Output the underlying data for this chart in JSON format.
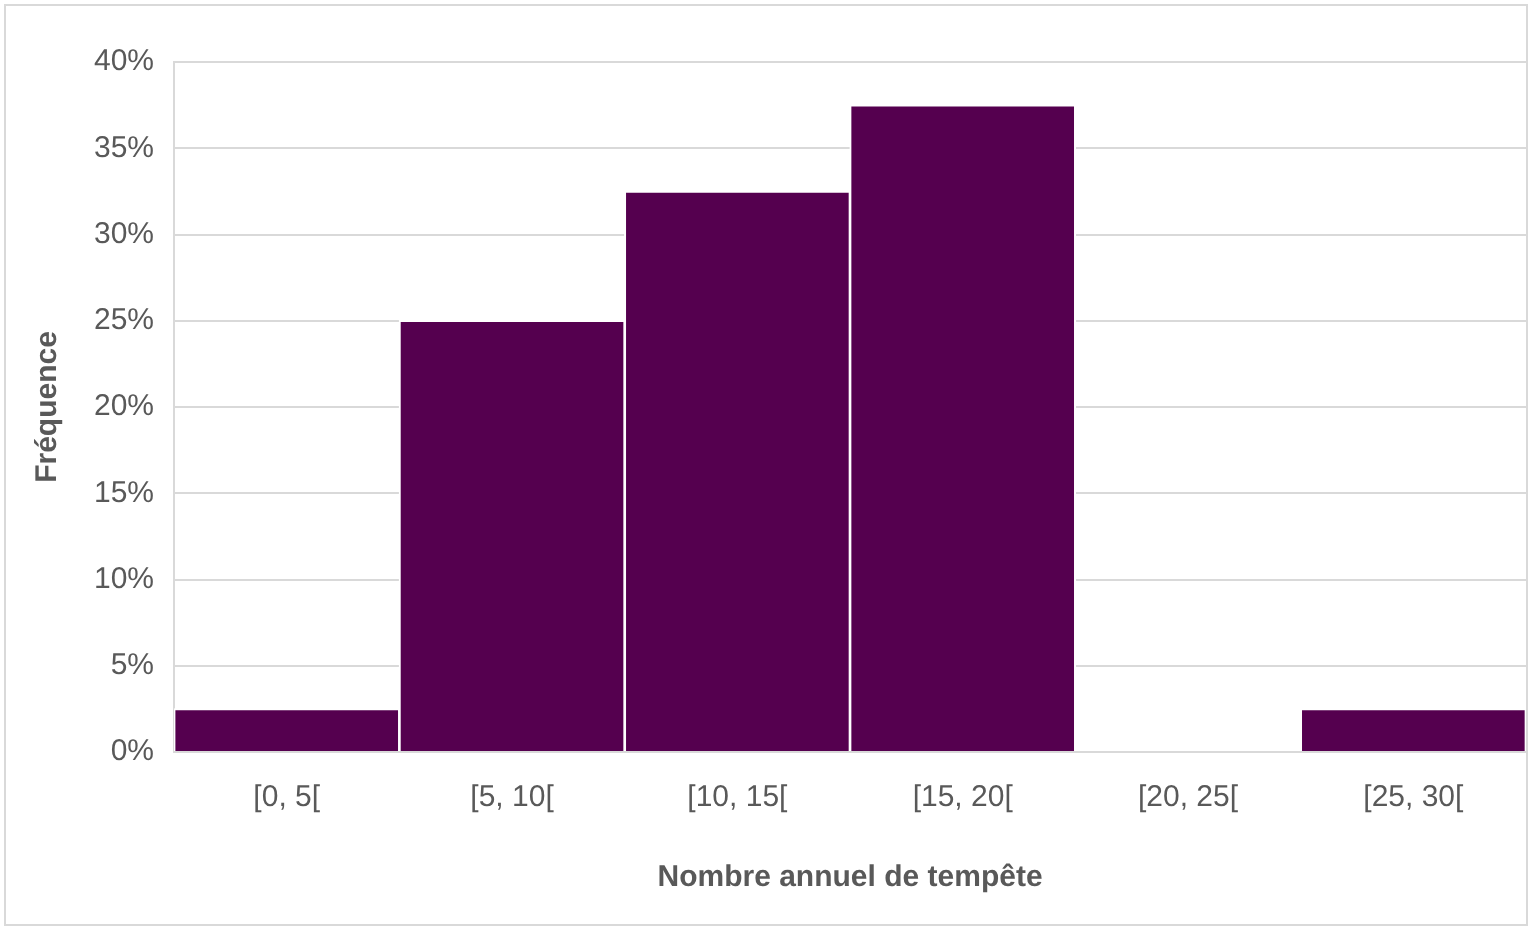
{
  "chart_data": {
    "type": "bar",
    "xlabel": "Nombre annuel de tempête",
    "ylabel": "Fréquence",
    "categories": [
      "[0, 5[",
      "[5, 10[",
      "[10, 15[",
      "[15, 20[",
      "[20, 25[",
      "[25, 30["
    ],
    "values": [
      2.5,
      25,
      32.5,
      37.5,
      0,
      2.5
    ],
    "color": "#55004f",
    "ylim": [
      0,
      40
    ],
    "yticks": [
      {
        "value": 0,
        "label": "0%"
      },
      {
        "value": 5,
        "label": "5%"
      },
      {
        "value": 10,
        "label": "10%"
      },
      {
        "value": 15,
        "label": "15%"
      },
      {
        "value": 20,
        "label": "20%"
      },
      {
        "value": 25,
        "label": "25%"
      },
      {
        "value": 30,
        "label": "30%"
      },
      {
        "value": 35,
        "label": "35%"
      },
      {
        "value": 40,
        "label": "40%"
      }
    ],
    "grid": "y",
    "legend": false
  }
}
